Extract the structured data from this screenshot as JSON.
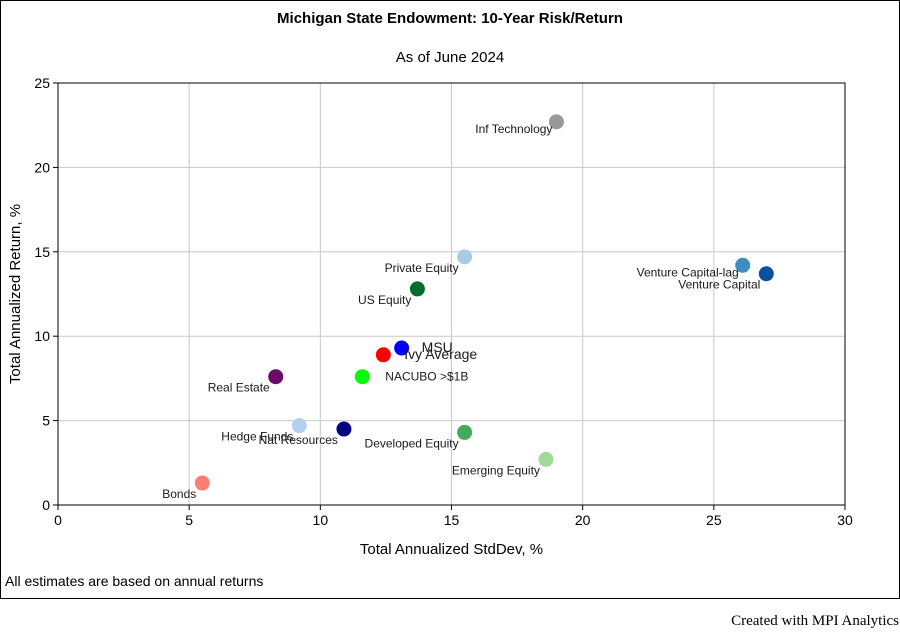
{
  "chart_data": {
    "type": "scatter",
    "title": "Michigan State Endowment: 10-Year Risk/Return",
    "subtitle": "As of June 2024",
    "xlabel": "Total Annualized StdDev, %",
    "ylabel": "Total Annualized Return, %",
    "xlim": [
      0,
      30
    ],
    "ylim": [
      0,
      25
    ],
    "xticks": [
      0,
      5,
      10,
      15,
      20,
      25,
      30
    ],
    "yticks": [
      0,
      5,
      10,
      15,
      20,
      25
    ],
    "grid": true,
    "legend": "none",
    "points": [
      {
        "name": "Inf Technology",
        "x": 19.0,
        "y": 22.7,
        "color": "#999999",
        "label_pos": "left"
      },
      {
        "name": "Private Equity",
        "x": 15.5,
        "y": 14.7,
        "color": "#a8cbe6",
        "label_pos": "below-left"
      },
      {
        "name": "Venture Capital-lag",
        "x": 26.1,
        "y": 14.2,
        "color": "#3e8ec4",
        "label_pos": "left"
      },
      {
        "name": "Venture Capital",
        "x": 27.0,
        "y": 13.7,
        "color": "#08519c",
        "label_pos": "below-left"
      },
      {
        "name": "US Equity",
        "x": 13.7,
        "y": 12.8,
        "color": "#006d2c",
        "label_pos": "below-left"
      },
      {
        "name": "MSU",
        "x": 13.1,
        "y": 9.3,
        "color": "#0000ff",
        "label_pos": "right"
      },
      {
        "name": "Ivy Average",
        "x": 12.4,
        "y": 8.9,
        "color": "#ff0000",
        "label_pos": "right"
      },
      {
        "name": "NACUBO >$1B",
        "x": 11.6,
        "y": 7.6,
        "color": "#00ff00",
        "label_pos": "right"
      },
      {
        "name": "Real Estate",
        "x": 8.3,
        "y": 7.6,
        "color": "#6a0a6a",
        "label_pos": "below-left"
      },
      {
        "name": "Hedge Funds",
        "x": 9.2,
        "y": 4.7,
        "color": "#b3d1ef",
        "label_pos": "below-left"
      },
      {
        "name": "Nat Resources",
        "x": 10.9,
        "y": 4.5,
        "color": "#000080",
        "label_pos": "below-left"
      },
      {
        "name": "Developed Equity",
        "x": 15.5,
        "y": 4.3,
        "color": "#41ab5d",
        "label_pos": "below-left"
      },
      {
        "name": "Emerging Equity",
        "x": 18.6,
        "y": 2.7,
        "color": "#a1d99b",
        "label_pos": "below-left"
      },
      {
        "name": "Bonds",
        "x": 5.5,
        "y": 1.3,
        "color": "#fb8072",
        "label_pos": "below-left"
      }
    ]
  },
  "footnote": "All estimates are based on annual returns",
  "credit": "Created with MPI Analytics"
}
